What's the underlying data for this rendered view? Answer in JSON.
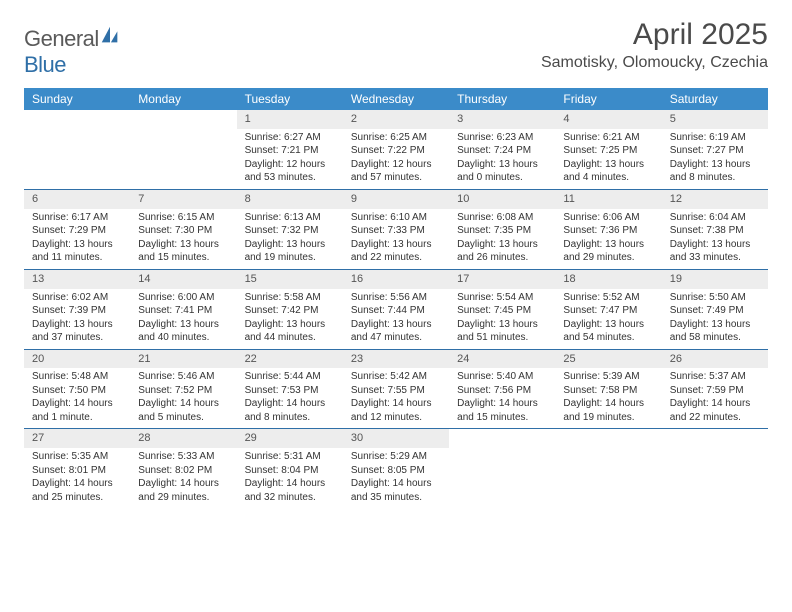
{
  "logo": {
    "general": "General",
    "blue": "Blue"
  },
  "title": "April 2025",
  "location": "Samotisky, Olomoucky, Czechia",
  "header_bg": "#3b8bc9",
  "rule_color": "#2f6fa7",
  "daynum_bg": "#ededed",
  "days": [
    "Sunday",
    "Monday",
    "Tuesday",
    "Wednesday",
    "Thursday",
    "Friday",
    "Saturday"
  ],
  "weeks": [
    [
      null,
      null,
      {
        "n": "1",
        "sr": "Sunrise: 6:27 AM",
        "ss": "Sunset: 7:21 PM",
        "dl": "Daylight: 12 hours and 53 minutes."
      },
      {
        "n": "2",
        "sr": "Sunrise: 6:25 AM",
        "ss": "Sunset: 7:22 PM",
        "dl": "Daylight: 12 hours and 57 minutes."
      },
      {
        "n": "3",
        "sr": "Sunrise: 6:23 AM",
        "ss": "Sunset: 7:24 PM",
        "dl": "Daylight: 13 hours and 0 minutes."
      },
      {
        "n": "4",
        "sr": "Sunrise: 6:21 AM",
        "ss": "Sunset: 7:25 PM",
        "dl": "Daylight: 13 hours and 4 minutes."
      },
      {
        "n": "5",
        "sr": "Sunrise: 6:19 AM",
        "ss": "Sunset: 7:27 PM",
        "dl": "Daylight: 13 hours and 8 minutes."
      }
    ],
    [
      {
        "n": "6",
        "sr": "Sunrise: 6:17 AM",
        "ss": "Sunset: 7:29 PM",
        "dl": "Daylight: 13 hours and 11 minutes."
      },
      {
        "n": "7",
        "sr": "Sunrise: 6:15 AM",
        "ss": "Sunset: 7:30 PM",
        "dl": "Daylight: 13 hours and 15 minutes."
      },
      {
        "n": "8",
        "sr": "Sunrise: 6:13 AM",
        "ss": "Sunset: 7:32 PM",
        "dl": "Daylight: 13 hours and 19 minutes."
      },
      {
        "n": "9",
        "sr": "Sunrise: 6:10 AM",
        "ss": "Sunset: 7:33 PM",
        "dl": "Daylight: 13 hours and 22 minutes."
      },
      {
        "n": "10",
        "sr": "Sunrise: 6:08 AM",
        "ss": "Sunset: 7:35 PM",
        "dl": "Daylight: 13 hours and 26 minutes."
      },
      {
        "n": "11",
        "sr": "Sunrise: 6:06 AM",
        "ss": "Sunset: 7:36 PM",
        "dl": "Daylight: 13 hours and 29 minutes."
      },
      {
        "n": "12",
        "sr": "Sunrise: 6:04 AM",
        "ss": "Sunset: 7:38 PM",
        "dl": "Daylight: 13 hours and 33 minutes."
      }
    ],
    [
      {
        "n": "13",
        "sr": "Sunrise: 6:02 AM",
        "ss": "Sunset: 7:39 PM",
        "dl": "Daylight: 13 hours and 37 minutes."
      },
      {
        "n": "14",
        "sr": "Sunrise: 6:00 AM",
        "ss": "Sunset: 7:41 PM",
        "dl": "Daylight: 13 hours and 40 minutes."
      },
      {
        "n": "15",
        "sr": "Sunrise: 5:58 AM",
        "ss": "Sunset: 7:42 PM",
        "dl": "Daylight: 13 hours and 44 minutes."
      },
      {
        "n": "16",
        "sr": "Sunrise: 5:56 AM",
        "ss": "Sunset: 7:44 PM",
        "dl": "Daylight: 13 hours and 47 minutes."
      },
      {
        "n": "17",
        "sr": "Sunrise: 5:54 AM",
        "ss": "Sunset: 7:45 PM",
        "dl": "Daylight: 13 hours and 51 minutes."
      },
      {
        "n": "18",
        "sr": "Sunrise: 5:52 AM",
        "ss": "Sunset: 7:47 PM",
        "dl": "Daylight: 13 hours and 54 minutes."
      },
      {
        "n": "19",
        "sr": "Sunrise: 5:50 AM",
        "ss": "Sunset: 7:49 PM",
        "dl": "Daylight: 13 hours and 58 minutes."
      }
    ],
    [
      {
        "n": "20",
        "sr": "Sunrise: 5:48 AM",
        "ss": "Sunset: 7:50 PM",
        "dl": "Daylight: 14 hours and 1 minute."
      },
      {
        "n": "21",
        "sr": "Sunrise: 5:46 AM",
        "ss": "Sunset: 7:52 PM",
        "dl": "Daylight: 14 hours and 5 minutes."
      },
      {
        "n": "22",
        "sr": "Sunrise: 5:44 AM",
        "ss": "Sunset: 7:53 PM",
        "dl": "Daylight: 14 hours and 8 minutes."
      },
      {
        "n": "23",
        "sr": "Sunrise: 5:42 AM",
        "ss": "Sunset: 7:55 PM",
        "dl": "Daylight: 14 hours and 12 minutes."
      },
      {
        "n": "24",
        "sr": "Sunrise: 5:40 AM",
        "ss": "Sunset: 7:56 PM",
        "dl": "Daylight: 14 hours and 15 minutes."
      },
      {
        "n": "25",
        "sr": "Sunrise: 5:39 AM",
        "ss": "Sunset: 7:58 PM",
        "dl": "Daylight: 14 hours and 19 minutes."
      },
      {
        "n": "26",
        "sr": "Sunrise: 5:37 AM",
        "ss": "Sunset: 7:59 PM",
        "dl": "Daylight: 14 hours and 22 minutes."
      }
    ],
    [
      {
        "n": "27",
        "sr": "Sunrise: 5:35 AM",
        "ss": "Sunset: 8:01 PM",
        "dl": "Daylight: 14 hours and 25 minutes."
      },
      {
        "n": "28",
        "sr": "Sunrise: 5:33 AM",
        "ss": "Sunset: 8:02 PM",
        "dl": "Daylight: 14 hours and 29 minutes."
      },
      {
        "n": "29",
        "sr": "Sunrise: 5:31 AM",
        "ss": "Sunset: 8:04 PM",
        "dl": "Daylight: 14 hours and 32 minutes."
      },
      {
        "n": "30",
        "sr": "Sunrise: 5:29 AM",
        "ss": "Sunset: 8:05 PM",
        "dl": "Daylight: 14 hours and 35 minutes."
      },
      null,
      null,
      null
    ]
  ]
}
